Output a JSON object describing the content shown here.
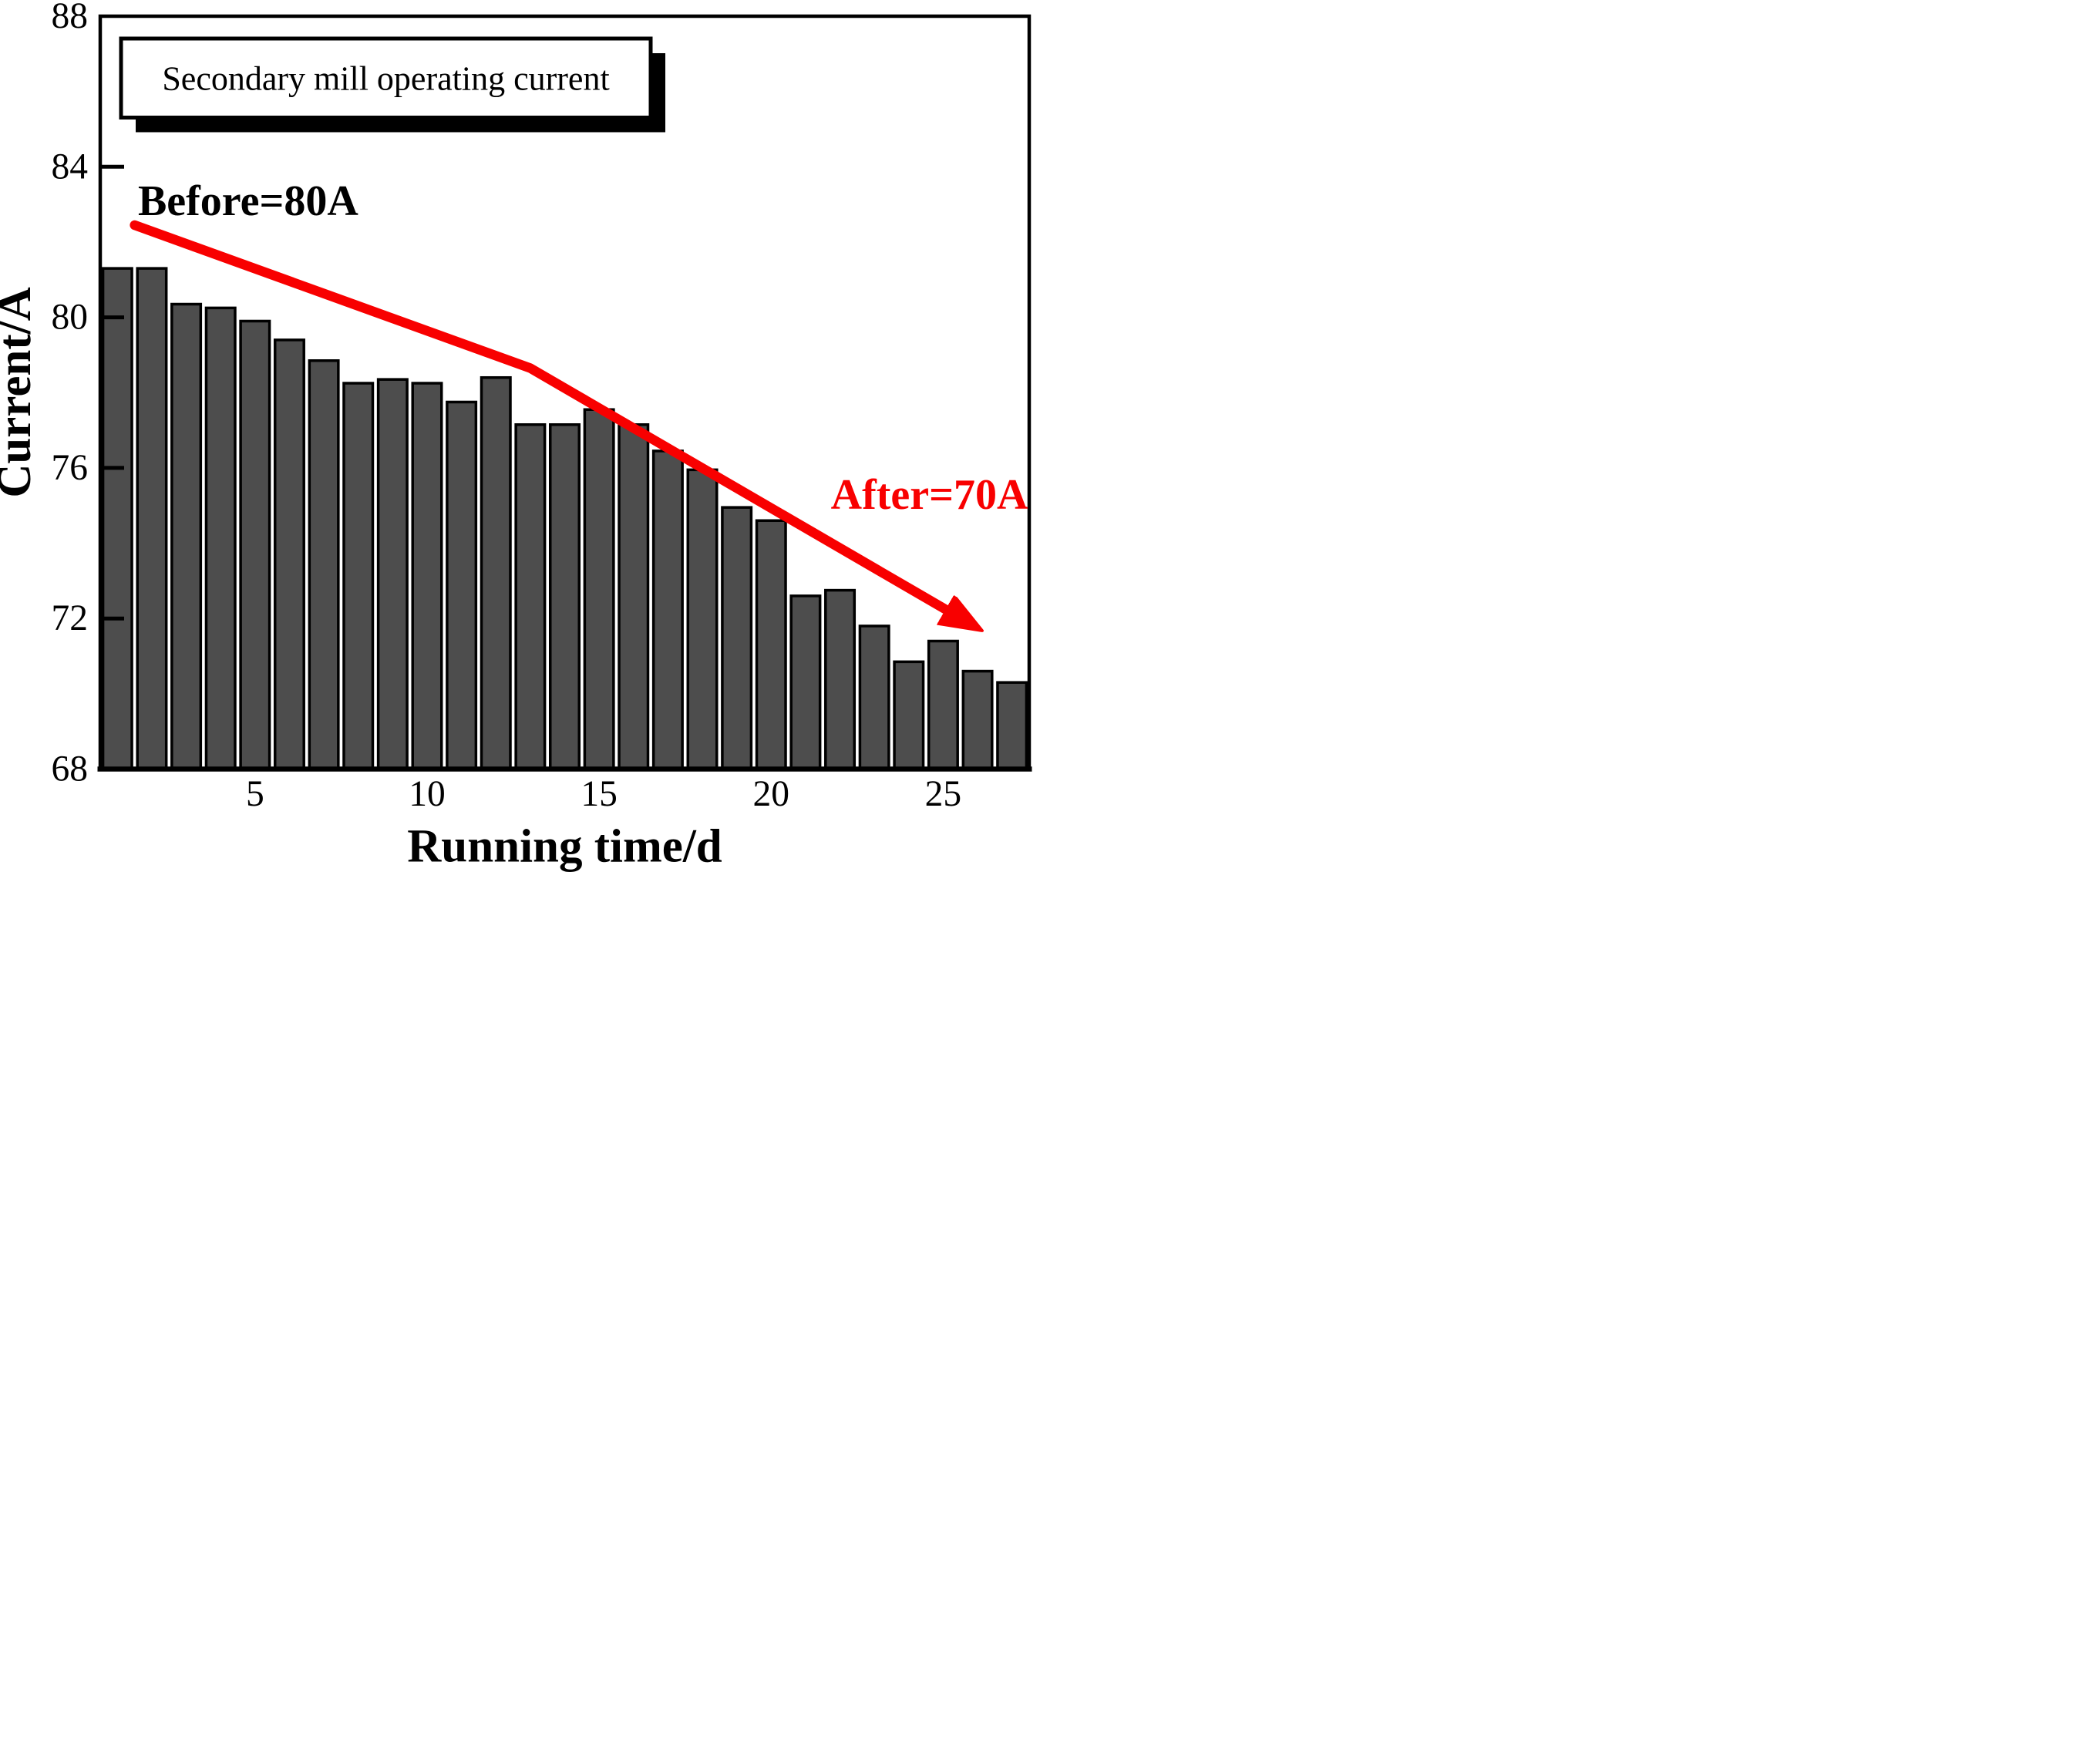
{
  "chart_data": {
    "type": "bar",
    "title": "Secondary mill operating current",
    "xlabel": "Running time/d",
    "ylabel": "Current/A",
    "x": [
      1,
      2,
      3,
      4,
      5,
      6,
      7,
      8,
      9,
      10,
      11,
      12,
      13,
      14,
      15,
      16,
      17,
      18,
      19,
      20,
      21,
      22,
      23,
      24,
      25,
      26,
      27
    ],
    "values": [
      81.3,
      81.3,
      80.35,
      80.25,
      79.9,
      79.4,
      78.85,
      78.25,
      78.35,
      78.25,
      77.75,
      78.4,
      77.15,
      77.15,
      77.55,
      77.15,
      76.45,
      75.95,
      74.95,
      74.6,
      72.6,
      72.75,
      71.8,
      70.85,
      71.4,
      70.6,
      70.3
    ],
    "xlim": [
      0.5,
      27.5
    ],
    "ylim": [
      68,
      88
    ],
    "xticks": [
      5,
      10,
      15,
      20,
      25
    ],
    "yticks": [
      68,
      72,
      76,
      80,
      84,
      88
    ],
    "grid": false,
    "legend_position": "none",
    "bar_color": "#4d4d4d",
    "bar_edge_color": "#000000",
    "annotations": {
      "before_label": {
        "text": "Before=80A",
        "x": 4.8,
        "y": 83.1,
        "color": "#000000"
      },
      "after_label": {
        "text": "After=70A",
        "x": 24.6,
        "y": 75.3,
        "color": "#f80000"
      },
      "trend_arrow": {
        "color": "#f80000",
        "points": [
          [
            1.5,
            82.45
          ],
          [
            13.0,
            78.65
          ],
          [
            26.05,
            71.72
          ]
        ],
        "start_value": 80,
        "end_value": 70
      }
    }
  }
}
